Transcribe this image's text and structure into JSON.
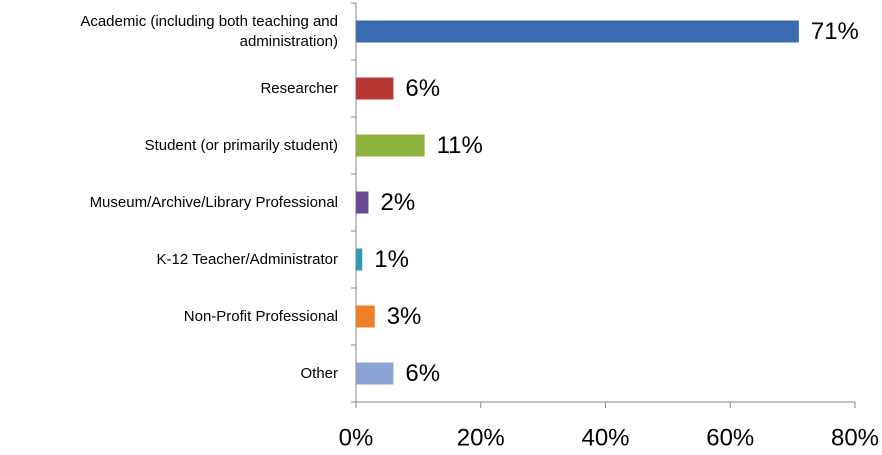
{
  "chart_data": {
    "type": "bar",
    "orientation": "horizontal",
    "categories": [
      "Academic (including both teaching and administration)",
      "Researcher",
      "Student (or primarily student)",
      "Museum/Archive/Library Professional",
      "K-12 Teacher/Administrator",
      "Non-Profit Professional",
      "Other"
    ],
    "values": [
      71,
      6,
      11,
      2,
      1,
      3,
      6
    ],
    "value_labels": [
      "71%",
      "6%",
      "11%",
      "2%",
      "1%",
      "3%",
      "6%"
    ],
    "colors": [
      "#3a6bb0",
      "#b83633",
      "#8cb23f",
      "#6a4a96",
      "#2f9bb6",
      "#ef7f27",
      "#8aa5d3"
    ],
    "xlim": [
      0,
      80
    ],
    "xticks": [
      {
        "value": 0,
        "label": "0%"
      },
      {
        "value": 20,
        "label": "20%"
      },
      {
        "value": 40,
        "label": "40%"
      },
      {
        "value": 60,
        "label": "60%"
      },
      {
        "value": 80,
        "label": "80%"
      }
    ],
    "grid": false
  }
}
